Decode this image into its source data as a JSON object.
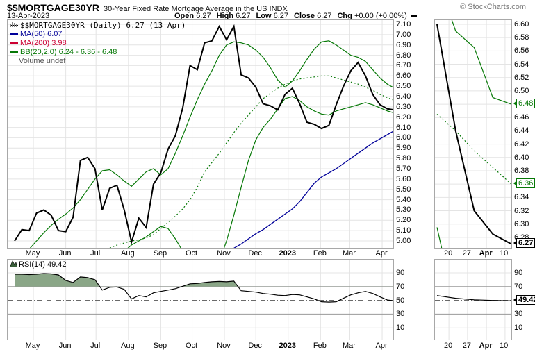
{
  "header": {
    "symbol": "$$MORTGAGE30YR",
    "title": "30-Year Fixed Rate Mortgage Average in the US INDX",
    "credit": "© StockCharts.com",
    "date": "13-Apr-2023",
    "quote": {
      "open_label": "Open",
      "open": "6.27",
      "high_label": "High",
      "high": "6.27",
      "low_label": "Low",
      "low": "6.27",
      "close_label": "Close",
      "close": "6.27",
      "chg_label": "Chg",
      "chg": "+0.00 (+0.00%)"
    }
  },
  "legend": {
    "main": "$$MORTGAGE30YR (Daily) 6.27 (13 Apr)",
    "ma50": "MA(50) 6.07",
    "ma200": "MA(200) 3.98",
    "bb": "BB(20,2.0) 6.24 - 6.36 - 6.48",
    "volume": "Volume undef",
    "rsi": "RSI(14) 49.42"
  },
  "colors": {
    "price": "#000000",
    "ma50": "#000099",
    "ma200": "#cc0033",
    "bb": "#067806",
    "rsi_line": "#000000",
    "rsi_fill": "#8aa687",
    "grid": "#e4e4e4",
    "rsi_band": "#999999",
    "rsi_mid": "#555555",
    "credit_gray": "#777777"
  },
  "chart_data": [
    {
      "id": "price-main",
      "type": "line",
      "title": "$$MORTGAGE30YR Daily with MA(50), MA(200), BB(20,2.0)",
      "x_unit": "weeks from 13-Apr-2022",
      "ylim": [
        4.93,
        7.15
      ],
      "y_ticks": [
        7.1,
        7.0,
        6.9,
        6.8,
        6.7,
        6.6,
        6.5,
        6.4,
        6.3,
        6.2,
        6.1,
        6.0,
        5.9,
        5.8,
        5.7,
        5.6,
        5.5,
        5.4,
        5.3,
        5.2,
        5.1,
        5.0
      ],
      "x_ticks": {
        "labels": [
          "May",
          "Jun",
          "Jul",
          "Aug",
          "Sep",
          "Oct",
          "Nov",
          "Dec",
          "2023",
          "Feb",
          "Mar",
          "Apr"
        ],
        "week_pos": [
          2.57,
          7.0,
          11.14,
          15.57,
          20.0,
          24.29,
          28.71,
          33.0,
          37.43,
          41.86,
          45.86,
          50.29
        ],
        "bold_index": 8
      },
      "series": [
        {
          "name": "price",
          "style": "solid",
          "width": 2,
          "color_key": "price",
          "values": [
            5.0,
            5.11,
            5.1,
            5.27,
            5.3,
            5.25,
            5.1,
            5.09,
            5.23,
            5.78,
            5.81,
            5.7,
            5.3,
            5.51,
            5.54,
            5.3,
            4.99,
            5.22,
            5.13,
            5.55,
            5.66,
            5.89,
            6.02,
            6.29,
            6.7,
            6.66,
            6.92,
            6.94,
            7.08,
            6.95,
            7.08,
            6.61,
            6.58,
            6.49,
            6.33,
            6.31,
            6.27,
            6.42,
            6.48,
            6.33,
            6.15,
            6.13,
            6.09,
            6.12,
            6.32,
            6.5,
            6.65,
            6.73,
            6.6,
            6.42,
            6.32,
            6.28,
            6.27
          ]
        },
        {
          "name": "ma50",
          "style": "solid",
          "width": 1.3,
          "color_key": "ma50",
          "values": [
            null,
            null,
            null,
            null,
            null,
            null,
            null,
            null,
            null,
            null,
            null,
            null,
            null,
            null,
            null,
            null,
            null,
            null,
            null,
            null,
            null,
            null,
            null,
            null,
            null,
            null,
            null,
            null,
            null,
            null,
            4.93,
            4.97,
            5.02,
            5.07,
            5.11,
            5.16,
            5.21,
            5.26,
            5.31,
            5.38,
            5.47,
            5.56,
            5.62,
            5.66,
            5.7,
            5.75,
            5.8,
            5.85,
            5.9,
            5.95,
            5.99,
            6.03,
            6.07
          ]
        },
        {
          "name": "bb_upper",
          "style": "solid",
          "width": 1.2,
          "color_key": "bb",
          "values": [
            4.8,
            4.86,
            4.92,
            5.0,
            5.08,
            5.15,
            5.21,
            5.26,
            5.32,
            5.4,
            5.5,
            5.6,
            5.68,
            5.69,
            5.64,
            5.58,
            5.53,
            5.6,
            5.67,
            5.7,
            5.64,
            5.7,
            5.85,
            6.02,
            6.2,
            6.37,
            6.52,
            6.65,
            6.8,
            6.9,
            6.93,
            6.92,
            6.9,
            6.85,
            6.78,
            6.68,
            6.56,
            6.49,
            6.55,
            6.65,
            6.76,
            6.86,
            6.93,
            6.94,
            6.9,
            6.85,
            6.8,
            6.78,
            6.74,
            6.66,
            6.58,
            6.52,
            6.48
          ]
        },
        {
          "name": "bb_middle",
          "style": "dotted",
          "width": 1.2,
          "color_key": "bb",
          "values": [
            4.55,
            4.58,
            4.62,
            4.66,
            4.7,
            4.74,
            4.78,
            4.82,
            4.86,
            4.88,
            4.9,
            4.91,
            4.92,
            4.93,
            4.96,
            4.98,
            5.0,
            5.01,
            5.03,
            5.06,
            5.12,
            5.18,
            5.24,
            5.31,
            5.4,
            5.52,
            5.67,
            5.76,
            5.85,
            5.95,
            6.05,
            6.14,
            6.22,
            6.3,
            6.38,
            6.43,
            6.48,
            6.52,
            6.55,
            6.57,
            6.58,
            6.59,
            6.6,
            6.6,
            6.58,
            6.56,
            6.54,
            6.52,
            6.49,
            6.46,
            6.42,
            6.39,
            6.36
          ]
        },
        {
          "name": "bb_lower",
          "style": "solid",
          "width": 1.2,
          "color_key": "bb",
          "values": [
            4.3,
            4.32,
            4.35,
            4.38,
            4.42,
            4.45,
            4.48,
            4.52,
            4.55,
            4.5,
            4.46,
            4.5,
            4.58,
            4.7,
            4.82,
            4.9,
            4.96,
            5.0,
            5.04,
            5.09,
            5.14,
            5.12,
            5.02,
            4.9,
            4.72,
            4.58,
            4.52,
            4.58,
            4.8,
            5.0,
            5.25,
            5.52,
            5.78,
            5.98,
            6.1,
            6.18,
            6.28,
            6.38,
            6.4,
            6.36,
            6.3,
            6.26,
            6.23,
            6.22,
            6.26,
            6.28,
            6.3,
            6.32,
            6.34,
            6.32,
            6.29,
            6.26,
            6.24
          ]
        }
      ]
    },
    {
      "id": "price-recent",
      "type": "line",
      "title": "Recent close-up (20-Mar to 13-Apr-2023)",
      "ylim": [
        6.26,
        6.6
      ],
      "y_ticks": [
        6.6,
        6.58,
        6.56,
        6.54,
        6.52,
        6.5,
        6.48,
        6.46,
        6.44,
        6.42,
        6.4,
        6.38,
        6.36,
        6.34,
        6.32,
        6.3,
        6.28
      ],
      "y_ticks_replaced_by_callouts": [
        6.48,
        6.36
      ],
      "x_ticks": {
        "labels": [
          "20",
          "27",
          "Apr",
          "10"
        ],
        "week_pos": [
          0.64,
          1.64,
          2.66,
          3.63
        ],
        "bold_index": 2
      },
      "series": [
        {
          "name": "price",
          "style": "solid",
          "width": 2,
          "color_key": "price",
          "values": [
            6.6,
            6.44,
            6.32,
            6.285,
            6.27
          ]
        },
        {
          "name": "bb_upper",
          "style": "solid",
          "width": 1.2,
          "color_key": "bb",
          "values": [
            6.67,
            6.59,
            6.565,
            6.49,
            6.48
          ]
        },
        {
          "name": "bb_middle",
          "style": "dotted",
          "width": 1.2,
          "color_key": "bb",
          "values": [
            6.465,
            6.44,
            6.41,
            6.385,
            6.36
          ]
        },
        {
          "name": "bb_lower",
          "style": "solid",
          "width": 1.2,
          "color_key": "bb",
          "values": [
            6.295,
            6.17,
            6.15,
            6.19,
            6.24
          ]
        }
      ],
      "callouts": [
        {
          "text": "6.48",
          "value": 6.48,
          "style": "green"
        },
        {
          "text": "6.36",
          "value": 6.36,
          "style": "green"
        },
        {
          "text": "6.27",
          "value": 6.27,
          "style": "black"
        }
      ]
    },
    {
      "id": "rsi-main",
      "type": "line",
      "title": "RSI(14)",
      "ylim": [
        0,
        100
      ],
      "y_ticks": [
        90,
        70,
        50,
        30,
        10
      ],
      "overbought": 70,
      "oversold": 30,
      "midline": 50,
      "series": [
        {
          "name": "rsi",
          "style": "solid",
          "width": 1.2,
          "color_key": "rsi_line",
          "fill_above": 70,
          "values": [
            88,
            88,
            87.5,
            88,
            89,
            88.5,
            87,
            79,
            76,
            84,
            83,
            80,
            65,
            69,
            69.5,
            66,
            52,
            57,
            55,
            61,
            63,
            65,
            67,
            70.5,
            74,
            74.5,
            76,
            77,
            77.5,
            77,
            78,
            64,
            63,
            62,
            60,
            59,
            57.5,
            57,
            58.5,
            58,
            55,
            52,
            48,
            47.5,
            48,
            53,
            58,
            61,
            63,
            60,
            55,
            50.5,
            49.4
          ]
        }
      ]
    },
    {
      "id": "rsi-recent",
      "type": "line",
      "title": "RSI(14) close-up",
      "ylim": [
        0,
        100
      ],
      "y_ticks": [
        90,
        70,
        30,
        10
      ],
      "series": [
        {
          "name": "rsi",
          "style": "solid",
          "width": 1.2,
          "color_key": "rsi_line",
          "values": [
            57,
            53,
            50.8,
            49.9,
            49.42
          ]
        }
      ],
      "callouts": [
        {
          "text": "49.42",
          "value": 49.42,
          "style": "black"
        }
      ]
    }
  ]
}
